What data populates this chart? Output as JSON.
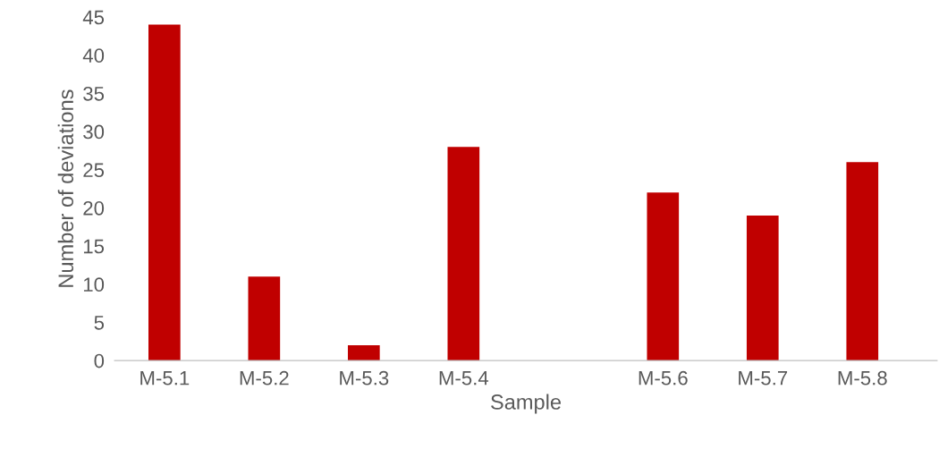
{
  "chart_data": {
    "type": "bar",
    "xlabel": "Sample",
    "ylabel": "Number of deviations",
    "categories": [
      "M-5.1",
      "M-5.2",
      "M-5.3",
      "M-5.4",
      null,
      "M-5.6",
      "M-5.7",
      "M-5.8"
    ],
    "values": [
      44,
      11,
      2,
      28,
      null,
      22,
      19,
      26
    ],
    "color": "#c00000",
    "ylim": [
      0,
      45
    ],
    "yticks": [
      0,
      5,
      10,
      15,
      20,
      25,
      30,
      35,
      40,
      45
    ],
    "grid": false
  }
}
